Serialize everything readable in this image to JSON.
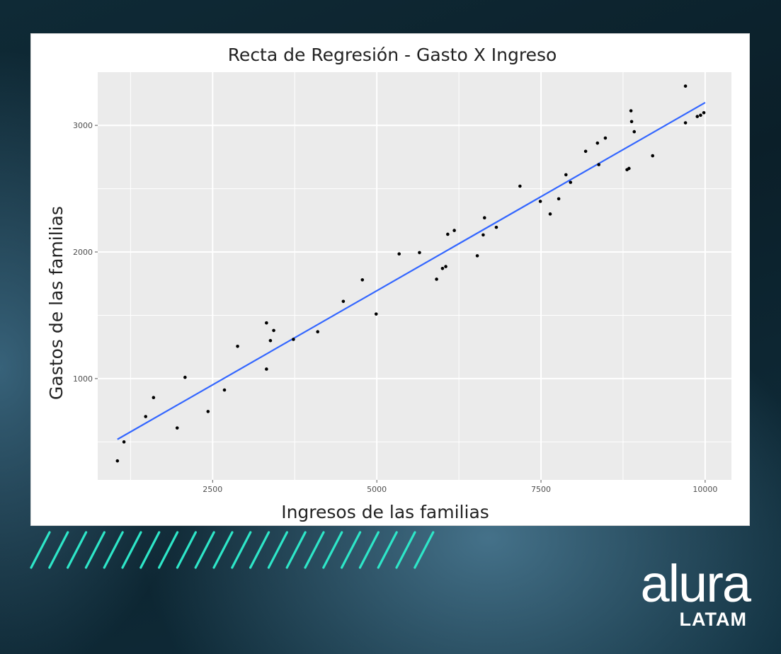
{
  "chart_data": {
    "type": "scatter",
    "title": "Recta de Regresión - Gasto X Ingreso",
    "xlabel": "Ingresos de las familias",
    "ylabel": "Gastos de las familias",
    "xlim": [
      750,
      10400
    ],
    "ylim": [
      200,
      3420
    ],
    "x_ticks": [
      2500,
      5000,
      7500,
      10000
    ],
    "y_ticks": [
      1000,
      2000,
      3000
    ],
    "grid": true,
    "legend": "none",
    "points": [
      {
        "x": 1050,
        "y": 350
      },
      {
        "x": 1150,
        "y": 500
      },
      {
        "x": 1480,
        "y": 700
      },
      {
        "x": 1600,
        "y": 850
      },
      {
        "x": 1960,
        "y": 610
      },
      {
        "x": 2080,
        "y": 1010
      },
      {
        "x": 2430,
        "y": 740
      },
      {
        "x": 2680,
        "y": 910
      },
      {
        "x": 2880,
        "y": 1255
      },
      {
        "x": 3320,
        "y": 1440
      },
      {
        "x": 3320,
        "y": 1075
      },
      {
        "x": 3380,
        "y": 1300
      },
      {
        "x": 3430,
        "y": 1380
      },
      {
        "x": 3730,
        "y": 1310
      },
      {
        "x": 4100,
        "y": 1370
      },
      {
        "x": 4490,
        "y": 1610
      },
      {
        "x": 4780,
        "y": 1780
      },
      {
        "x": 4990,
        "y": 1510
      },
      {
        "x": 5340,
        "y": 1985
      },
      {
        "x": 5650,
        "y": 1995
      },
      {
        "x": 5910,
        "y": 1785
      },
      {
        "x": 6000,
        "y": 1870
      },
      {
        "x": 6050,
        "y": 1885
      },
      {
        "x": 6080,
        "y": 2140
      },
      {
        "x": 6180,
        "y": 2170
      },
      {
        "x": 6530,
        "y": 1970
      },
      {
        "x": 6620,
        "y": 2135
      },
      {
        "x": 6640,
        "y": 2270
      },
      {
        "x": 6820,
        "y": 2195
      },
      {
        "x": 7180,
        "y": 2520
      },
      {
        "x": 7490,
        "y": 2400
      },
      {
        "x": 7640,
        "y": 2300
      },
      {
        "x": 7770,
        "y": 2420
      },
      {
        "x": 7880,
        "y": 2610
      },
      {
        "x": 7950,
        "y": 2550
      },
      {
        "x": 8180,
        "y": 2795
      },
      {
        "x": 8360,
        "y": 2860
      },
      {
        "x": 8380,
        "y": 2690
      },
      {
        "x": 8480,
        "y": 2900
      },
      {
        "x": 8810,
        "y": 2650
      },
      {
        "x": 8840,
        "y": 2660
      },
      {
        "x": 8870,
        "y": 3115
      },
      {
        "x": 8880,
        "y": 3030
      },
      {
        "x": 8920,
        "y": 2950
      },
      {
        "x": 9200,
        "y": 2760
      },
      {
        "x": 9700,
        "y": 3020
      },
      {
        "x": 9700,
        "y": 3310
      },
      {
        "x": 9880,
        "y": 3070
      },
      {
        "x": 9930,
        "y": 3080
      },
      {
        "x": 9980,
        "y": 3100
      }
    ],
    "regression_line": {
      "x": [
        1050,
        10000
      ],
      "y": [
        520,
        3180
      ],
      "color": "#3366ff"
    },
    "point_color": "#000000",
    "panel_color": "#ebebeb",
    "grid_color": "#ffffff"
  },
  "branding": {
    "logo_word": "alura",
    "logo_sub": "LATAM",
    "stripe_color": "#2ee6c8"
  }
}
